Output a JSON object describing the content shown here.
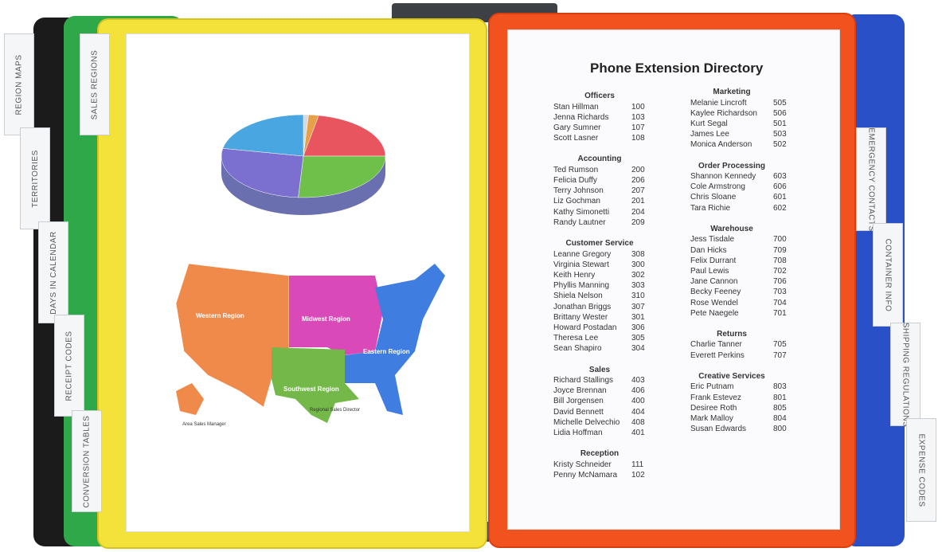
{
  "left_tabs": [
    "REGION MAPS",
    "TERRITORIES",
    "DAYS IN CALENDAR",
    "RECEIPT CODES",
    "CONVERSION TABLES"
  ],
  "front_tab": "SALES REGIONS",
  "right_tabs": [
    "EMERGENCY CONTACTS",
    "CONTAINER INFO",
    "SHIPPING REGULATIONS",
    "EXPENSE CODES"
  ],
  "left_page": {
    "pie": {
      "type": "pie",
      "values": [
        1,
        2,
        22,
        26,
        27,
        22
      ],
      "colors": [
        "#d9d9d9",
        "#e7a04a",
        "#e8555f",
        "#6fbf4b",
        "#7b6fd0",
        "#4aa6e0"
      ]
    },
    "map_labels": [
      "Western Region",
      "Midwest Region",
      "Eastern Region",
      "Southwest Region"
    ],
    "legends": [
      "Area Sales Manager",
      "Regional Sales Director"
    ]
  },
  "directory": {
    "title": "Phone Extension Directory",
    "columns": [
      [
        {
          "heading": "Officers",
          "entries": [
            [
              "Stan Hillman",
              100
            ],
            [
              "Jenna Richards",
              103
            ],
            [
              "Gary Sumner",
              107
            ],
            [
              "Scott Lasner",
              108
            ]
          ]
        },
        {
          "heading": "Accounting",
          "entries": [
            [
              "Ted Rumson",
              200
            ],
            [
              "Felicia Duffy",
              206
            ],
            [
              "Terry Johnson",
              207
            ],
            [
              "Liz Gochman",
              201
            ],
            [
              "Kathy Simonetti",
              204
            ],
            [
              "Randy Lautner",
              209
            ]
          ]
        },
        {
          "heading": "Customer Service",
          "entries": [
            [
              "Leanne Gregory",
              308
            ],
            [
              "Virginia Stewart",
              300
            ],
            [
              "Keith Henry",
              302
            ],
            [
              "Phyllis Manning",
              303
            ],
            [
              "Shiela Nelson",
              310
            ],
            [
              "Jonathan Briggs",
              307
            ],
            [
              "Brittany Wester",
              301
            ],
            [
              "Howard Postadan",
              306
            ],
            [
              "Theresa Lee",
              305
            ],
            [
              "Sean Shapiro",
              304
            ]
          ]
        },
        {
          "heading": "Sales",
          "entries": [
            [
              "Richard Stallings",
              403
            ],
            [
              "Joyce Brennan",
              406
            ],
            [
              "Bill Jorgensen",
              400
            ],
            [
              "David Bennett",
              404
            ],
            [
              "Michelle Delvechio",
              408
            ],
            [
              "Lidia Hoffman",
              401
            ]
          ]
        },
        {
          "heading": "Reception",
          "entries": [
            [
              "Kristy Schneider",
              111
            ],
            [
              "Penny McNamara",
              102
            ]
          ]
        }
      ],
      [
        {
          "heading": "Marketing",
          "entries": [
            [
              "Melanie Lincroft",
              505
            ],
            [
              "Kaylee Richardson",
              506
            ],
            [
              "Kurt Segal",
              501
            ],
            [
              "James Lee",
              503
            ],
            [
              "Monica Anderson",
              502
            ]
          ]
        },
        {
          "heading": "Order Processing",
          "entries": [
            [
              "Shannon Kennedy",
              603
            ],
            [
              "Cole Armstrong",
              606
            ],
            [
              "Chris Sloane",
              601
            ],
            [
              "Tara Richie",
              602
            ]
          ]
        },
        {
          "heading": "Warehouse",
          "entries": [
            [
              "Jess Tisdale",
              700
            ],
            [
              "Dan Hicks",
              709
            ],
            [
              "Felix Durrant",
              708
            ],
            [
              "Paul Lewis",
              702
            ],
            [
              "Jane Cannon",
              706
            ],
            [
              "Becky Feeney",
              703
            ],
            [
              "Rose Wendel",
              704
            ],
            [
              "Pete Naegele",
              701
            ]
          ]
        },
        {
          "heading": "Returns",
          "entries": [
            [
              "Charlie Tanner",
              705
            ],
            [
              "Everett Perkins",
              707
            ]
          ]
        },
        {
          "heading": "Creative Services",
          "entries": [
            [
              "Eric Putnam",
              803
            ],
            [
              "Frank Estevez",
              801
            ],
            [
              "Desiree Roth",
              805
            ],
            [
              "Mark Malloy",
              804
            ],
            [
              "Susan Edwards",
              800
            ]
          ]
        }
      ]
    ]
  }
}
